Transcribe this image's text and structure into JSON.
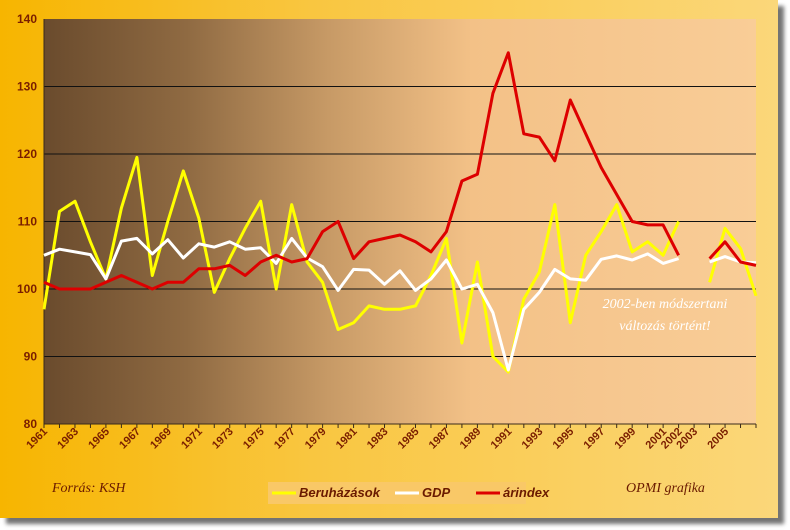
{
  "chart_data": {
    "type": "line",
    "title": "",
    "xlabel": "",
    "ylabel": "",
    "ylim": [
      80,
      140
    ],
    "yticks": [
      80,
      90,
      100,
      110,
      120,
      130,
      140
    ],
    "xlim": [
      1961,
      2007
    ],
    "xtick_labels": [
      "1961",
      "1963",
      "1965",
      "1967",
      "1969",
      "1971",
      "1973",
      "1975",
      "1977",
      "1979",
      "1981",
      "1983",
      "1985",
      "1987",
      "1989",
      "1991",
      "1993",
      "1995",
      "1997",
      "1999",
      "2001",
      "2002",
      "2003",
      "2005"
    ],
    "grid": "horizontal",
    "legend_position": "bottom-center",
    "colors": {
      "plot_dark": "#6b4c2e",
      "plot_light": "#f6c488",
      "frame": "#f7b500",
      "grid": "#111111"
    },
    "series": [
      {
        "name": "Beruházások",
        "color": "#ffff00",
        "x": [
          1961,
          1962,
          1963,
          1964,
          1965,
          1966,
          1967,
          1968,
          1969,
          1970,
          1971,
          1972,
          1973,
          1974,
          1975,
          1976,
          1977,
          1978,
          1979,
          1980,
          1981,
          1982,
          1983,
          1984,
          1985,
          1986,
          1987,
          1988,
          1989,
          1990,
          1991,
          1992,
          1993,
          1994,
          1995,
          1996,
          1997,
          1998,
          1999,
          2000,
          2001,
          2002,
          null,
          2004,
          2005,
          2006,
          2007
        ],
        "values": [
          97,
          111.5,
          113,
          107,
          101.5,
          112,
          119.5,
          102,
          110,
          117.5,
          110.5,
          99.5,
          104.5,
          109,
          113,
          100,
          112.5,
          104,
          101,
          94,
          95,
          97.5,
          97,
          97,
          97.5,
          102,
          107.5,
          92,
          104,
          90,
          87.7,
          98.5,
          102.5,
          112.5,
          95,
          105,
          108.5,
          112.5,
          105.5,
          107,
          105,
          110,
          null,
          101,
          109,
          106,
          99
        ]
      },
      {
        "name": "GDP",
        "color": "#ffffff",
        "x": [
          1961,
          1962,
          1963,
          1964,
          1965,
          1966,
          1967,
          1968,
          1969,
          1970,
          1971,
          1972,
          1973,
          1974,
          1975,
          1976,
          1977,
          1978,
          1979,
          1980,
          1981,
          1982,
          1983,
          1984,
          1985,
          1986,
          1987,
          1988,
          1989,
          1990,
          1991,
          1992,
          1993,
          1994,
          1995,
          1996,
          1997,
          1998,
          1999,
          2000,
          2001,
          2002,
          null,
          2004,
          2005,
          2006,
          2007
        ],
        "values": [
          105,
          105.9,
          105.5,
          105.1,
          101.5,
          107.1,
          107.5,
          105.2,
          107.3,
          104.6,
          106.7,
          106.2,
          107,
          105.9,
          106.1,
          103.8,
          107.5,
          104.6,
          103.3,
          99.8,
          102.9,
          102.8,
          100.7,
          102.7,
          99.8,
          101.5,
          104.3,
          100,
          100.7,
          96.5,
          88,
          97,
          99.5,
          102.9,
          101.5,
          101.3,
          104.4,
          104.9,
          104.3,
          105.2,
          103.8,
          104.5,
          null,
          104,
          104.8,
          104,
          103.9
        ]
      },
      {
        "name": "árindex",
        "color": "#dd0000",
        "x": [
          1961,
          1962,
          1963,
          1964,
          1965,
          1966,
          1967,
          1968,
          1969,
          1970,
          1971,
          1972,
          1973,
          1974,
          1975,
          1976,
          1977,
          1978,
          1979,
          1980,
          1981,
          1982,
          1983,
          1984,
          1985,
          1986,
          1987,
          1988,
          1989,
          1990,
          1991,
          1992,
          1993,
          1994,
          1995,
          1996,
          1997,
          1998,
          1999,
          2000,
          2001,
          2002,
          null,
          2004,
          2005,
          2006,
          2007
        ],
        "values": [
          101,
          100,
          100,
          100,
          101,
          102,
          101,
          100,
          101,
          101,
          103,
          103,
          103.5,
          102,
          104,
          105,
          104,
          104.5,
          108.5,
          110,
          104.5,
          107,
          107.5,
          108,
          107,
          105.5,
          108.5,
          116,
          117,
          129,
          135,
          123,
          122.5,
          119,
          128,
          123,
          118,
          114,
          110,
          109.5,
          109.5,
          105,
          null,
          104.5,
          107,
          104,
          103.5
        ]
      }
    ],
    "annotation": [
      "2002-ben módszertani",
      "változás történt!"
    ]
  },
  "footer": {
    "source": "Forrás: KSH",
    "credit": "OPMI grafika"
  }
}
